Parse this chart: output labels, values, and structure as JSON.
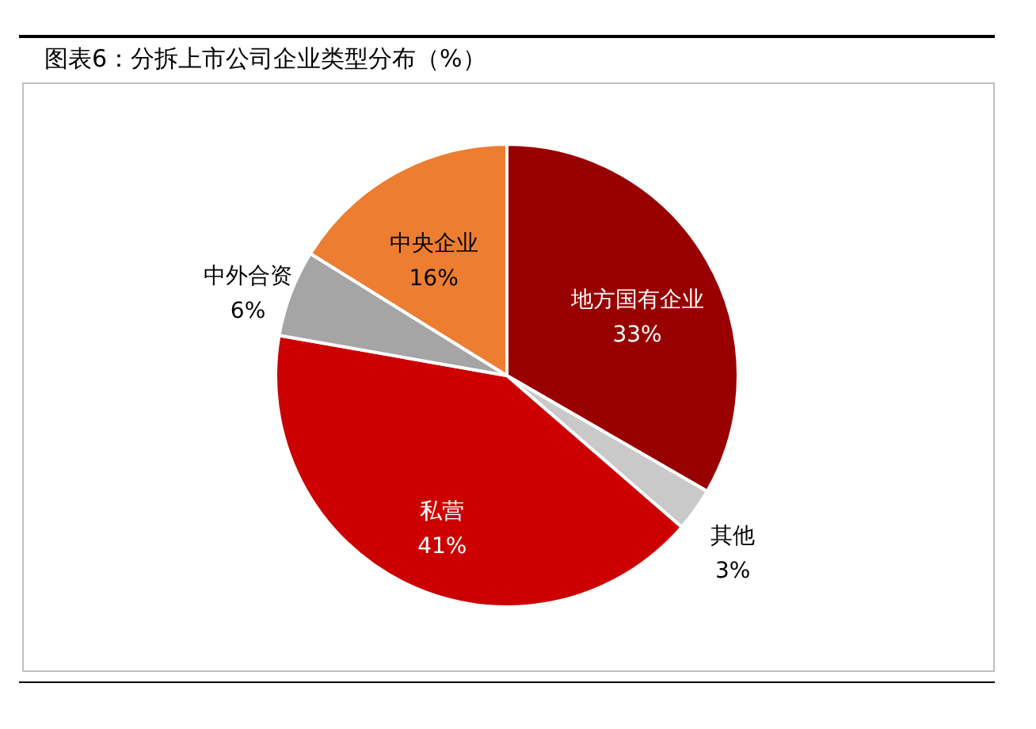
{
  "chart_data": {
    "type": "pie",
    "title": "图表6：分拆上市公司企业类型分布（%）",
    "categories": [
      "地方国有企业",
      "其他",
      "私营",
      "中外合资",
      "中央企业"
    ],
    "values": [
      33,
      3,
      41,
      6,
      16
    ],
    "colors": [
      "#990000",
      "#c9c9c9",
      "#cc0000",
      "#a5a5a5",
      "#ed7d31"
    ],
    "value_labels": [
      "33%",
      "3%",
      "41%",
      "6%",
      "16%"
    ]
  }
}
